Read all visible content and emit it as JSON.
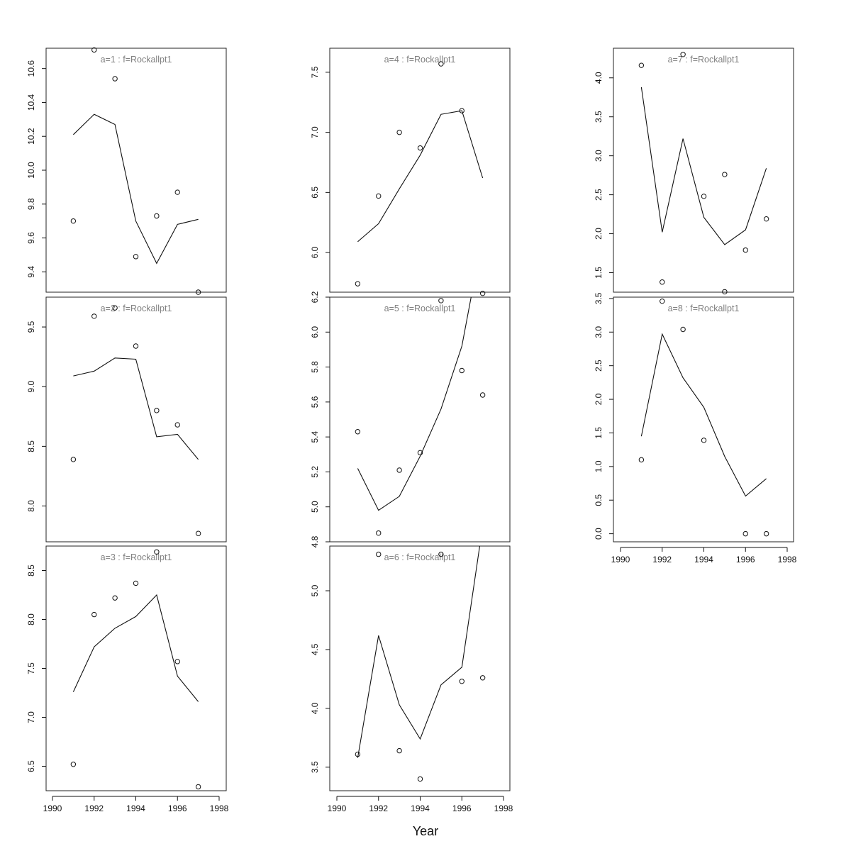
{
  "chart_data": {
    "type": "line",
    "xlabel": "Year",
    "xlim": [
      1990,
      1998
    ],
    "x_ticks": [
      1990,
      1992,
      1994,
      1996,
      1998
    ],
    "layout": "3x3 lattice of panels (column-wise), panel 9 empty; x axis on bottom panel of each column",
    "series_note": "circles = observed values, line = fitted values",
    "x": [
      1991,
      1992,
      1993,
      1994,
      1995,
      1996,
      1997
    ],
    "panels": [
      {
        "title": "a=1  :  f=Rockallpt1",
        "ylim": [
          9.28,
          10.72
        ],
        "y_ticks": [
          9.4,
          9.6,
          9.8,
          10.0,
          10.2,
          10.4,
          10.6
        ],
        "observed": [
          9.7,
          10.71,
          10.54,
          9.49,
          9.73,
          9.87,
          9.28
        ],
        "fitted": [
          10.21,
          10.33,
          10.27,
          9.7,
          9.45,
          9.68,
          9.71
        ]
      },
      {
        "title": "a=2  :  f=Rockallpt1",
        "ylim": [
          7.7,
          9.75
        ],
        "y_ticks": [
          8.0,
          8.5,
          9.0,
          9.5
        ],
        "observed": [
          8.39,
          9.59,
          9.66,
          9.34,
          8.8,
          8.68,
          7.77
        ],
        "fitted": [
          9.09,
          9.13,
          9.24,
          9.23,
          8.58,
          8.6,
          8.39
        ]
      },
      {
        "title": "a=3  :  f=Rockallpt1",
        "ylim": [
          6.25,
          8.75
        ],
        "y_ticks": [
          6.5,
          7.0,
          7.5,
          8.0,
          8.5
        ],
        "observed": [
          6.52,
          8.05,
          8.22,
          8.37,
          8.69,
          7.57,
          6.29
        ],
        "fitted": [
          7.26,
          7.72,
          7.91,
          8.03,
          8.25,
          7.42,
          7.16
        ]
      },
      {
        "title": "a=4  :  f=Rockallpt1",
        "ylim": [
          5.67,
          7.7
        ],
        "y_ticks": [
          6.0,
          6.5,
          7.0,
          7.5
        ],
        "observed": [
          5.74,
          6.47,
          7.0,
          6.87,
          7.57,
          7.18,
          5.66
        ],
        "fitted": [
          6.09,
          6.24,
          6.53,
          6.81,
          7.15,
          7.18,
          6.62
        ]
      },
      {
        "title": "a=5  :  f=Rockallpt1",
        "ylim": [
          4.8,
          6.2
        ],
        "y_ticks": [
          4.8,
          5.0,
          5.2,
          5.4,
          5.6,
          5.8,
          6.0,
          6.2
        ],
        "observed": [
          5.43,
          4.85,
          5.21,
          5.31,
          6.18,
          5.78,
          5.64
        ],
        "fitted": [
          5.22,
          4.98,
          5.06,
          5.29,
          5.56,
          5.92,
          6.55
        ]
      },
      {
        "title": "a=6  :  f=Rockallpt1",
        "ylim": [
          3.3,
          5.38
        ],
        "y_ticks": [
          3.5,
          4.0,
          4.5,
          5.0
        ],
        "observed": [
          3.61,
          5.31,
          3.64,
          3.4,
          5.31,
          4.23,
          4.26
        ],
        "fitted": [
          3.58,
          4.62,
          4.03,
          3.74,
          4.2,
          4.35,
          5.55
        ]
      },
      {
        "title": "a=7  :  f=Rockallpt1",
        "ylim": [
          1.25,
          4.38
        ],
        "y_ticks": [
          1.5,
          2.0,
          2.5,
          3.0,
          3.5,
          4.0
        ],
        "observed": [
          4.16,
          1.38,
          4.3,
          2.48,
          2.76,
          1.79,
          2.19
        ],
        "fitted": [
          3.88,
          2.02,
          3.22,
          2.21,
          1.86,
          2.05,
          2.84
        ]
      },
      {
        "title": "a=8  :  f=Rockallpt1",
        "ylim": [
          -0.12,
          3.52
        ],
        "y_ticks": [
          0.0,
          0.5,
          1.0,
          1.5,
          2.0,
          2.5,
          3.0,
          3.5
        ],
        "observed": [
          1.1,
          3.46,
          3.04,
          1.39,
          3.6,
          0.0,
          0.0
        ],
        "fitted": [
          1.45,
          2.97,
          2.32,
          1.88,
          1.15,
          0.56,
          0.82
        ]
      }
    ]
  }
}
